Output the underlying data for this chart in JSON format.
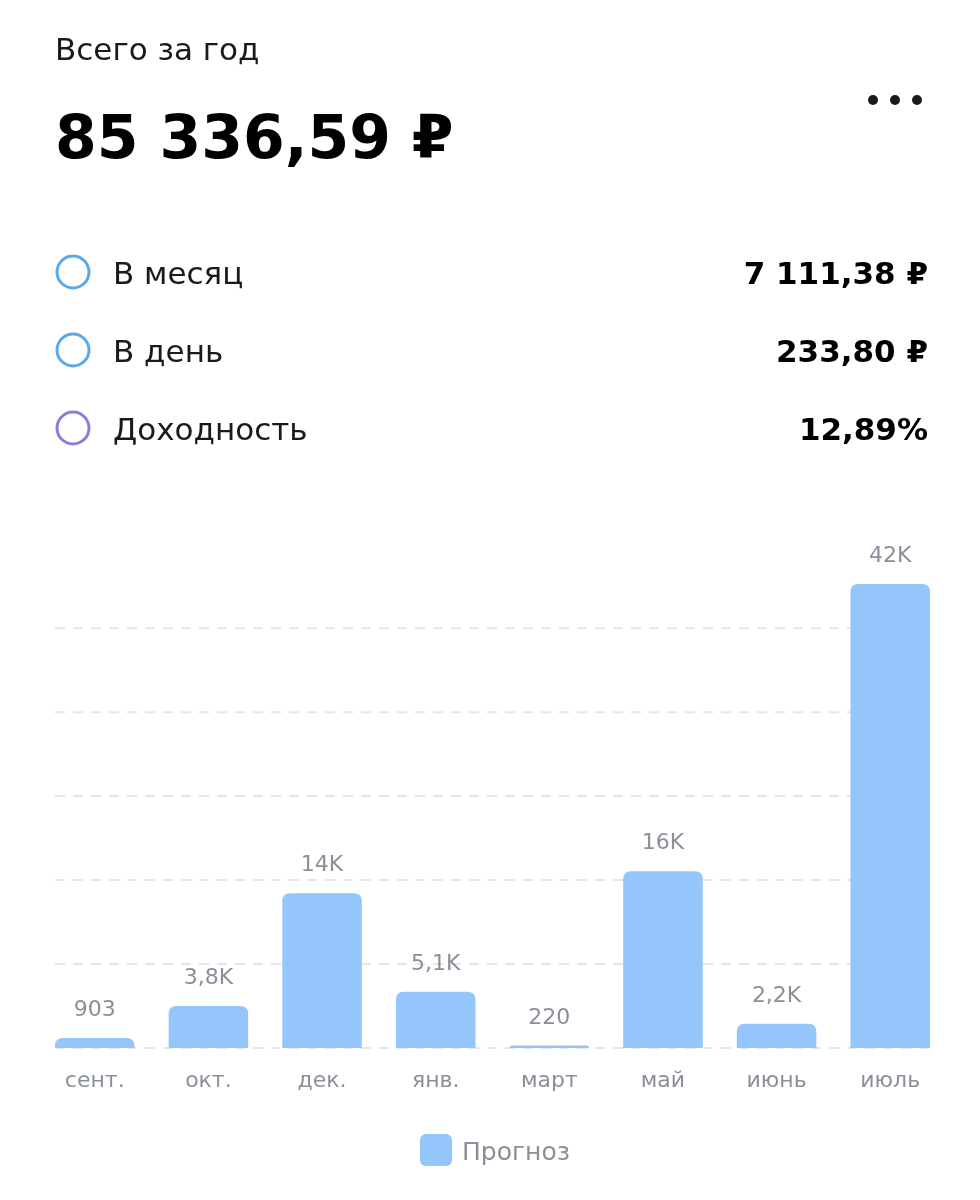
{
  "chart_data": {
    "type": "bar",
    "title": "Всего за год",
    "subtitle": "85 336,59 ₽",
    "annotations": [
      "В месяц",
      "7 111,38 ₽",
      "В день",
      "233,80 ₽",
      "Доходность",
      "12,89%"
    ],
    "categories": [
      "сент.",
      "окт.",
      "дек.",
      "янв.",
      "март",
      "май",
      "июнь",
      "июль"
    ],
    "series": [
      {
        "name": "Прогноз",
        "color": "#94c6fc",
        "values": [
          903,
          3800,
          14000,
          5100,
          220,
          16000,
          2200,
          42000
        ],
        "value_labels": [
          "903",
          "3,8K",
          "14K",
          "5,1K",
          "220",
          "16K",
          "2,2K",
          "42K"
        ]
      }
    ],
    "ylim": [
      0,
      42000
    ],
    "yticks": [
      {
        "value": 0,
        "label": null
      },
      {
        "value": 7600,
        "label": null
      },
      {
        "value": 15200,
        "label": null
      },
      {
        "value": 22800,
        "label": null
      },
      {
        "value": 30400,
        "label": null
      },
      {
        "value": 38000,
        "label": null
      }
    ],
    "tick_labels": "x",
    "grid": "y",
    "legend": "bottom"
  }
}
